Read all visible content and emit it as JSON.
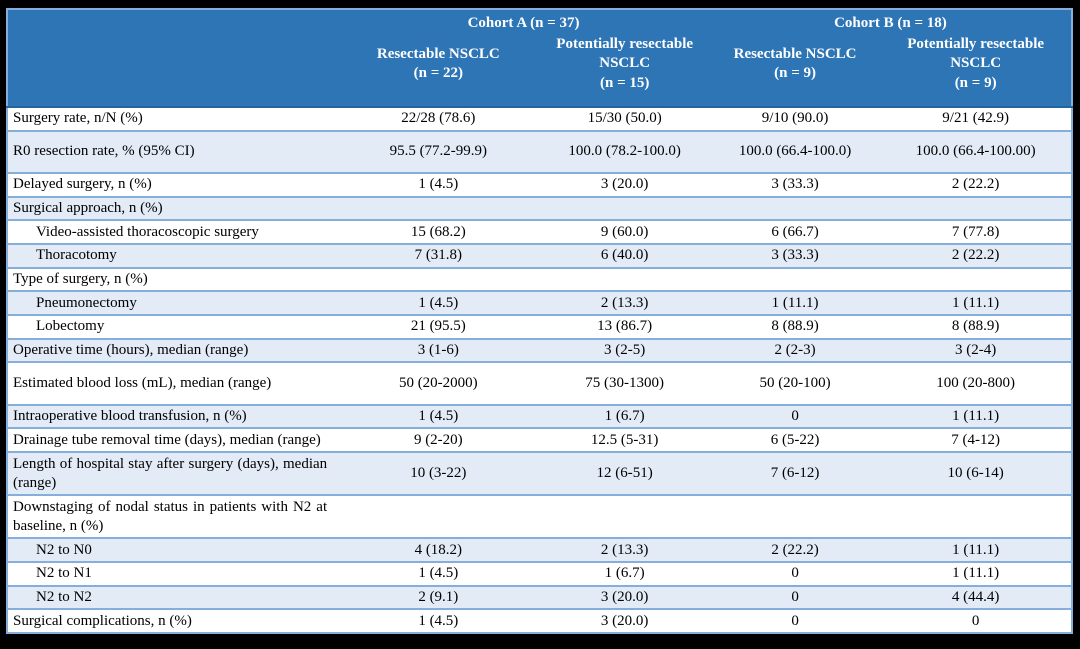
{
  "colors": {
    "header_bg": "#2E75B6",
    "header_text": "#FFFFFF",
    "row_alt_bg": "#E2EBF6",
    "row_bg": "#FFFFFF",
    "row_border": "#85AEDC",
    "header_divider": "#25649F",
    "frame": "#000000",
    "body_text": "#000000"
  },
  "table": {
    "cohorts": [
      {
        "label": "Cohort A (n = 37)"
      },
      {
        "label": "Cohort B (n = 18)"
      }
    ],
    "columns": [
      {
        "name": "Resectable NSCLC",
        "n": "(n = 22)"
      },
      {
        "name": "Potentially resectable NSCLC",
        "n": "(n = 15)"
      },
      {
        "name": "Resectable NSCLC",
        "n": "(n = 9)"
      },
      {
        "name": "Potentially resectable NSCLC",
        "n": "(n = 9)"
      }
    ],
    "rows": [
      {
        "label": "Surgery rate, n/N (%)",
        "indent": false,
        "values": [
          "22/28 (78.6)",
          "15/30 (50.0)",
          "9/10 (90.0)",
          "9/21 (42.9)"
        ]
      },
      {
        "label": "R0 resection rate, % (95% CI)",
        "indent": false,
        "values": [
          "95.5 (77.2-99.9)",
          "100.0 (78.2-100.0)",
          "100.0 (66.4-100.0)",
          "100.0 (66.4-100.00)"
        ]
      },
      {
        "label": "Delayed surgery, n (%)",
        "indent": false,
        "values": [
          "1 (4.5)",
          "3 (20.0)",
          "3 (33.3)",
          "2 (22.2)"
        ]
      },
      {
        "label": "Surgical approach, n (%)",
        "indent": false,
        "values": [
          "",
          "",
          "",
          ""
        ]
      },
      {
        "label": "Video-assisted thoracoscopic surgery",
        "indent": true,
        "values": [
          "15 (68.2)",
          "9 (60.0)",
          "6 (66.7)",
          "7 (77.8)"
        ]
      },
      {
        "label": "Thoracotomy",
        "indent": true,
        "values": [
          "7 (31.8)",
          "6 (40.0)",
          "3 (33.3)",
          "2 (22.2)"
        ]
      },
      {
        "label": "Type of surgery, n (%)",
        "indent": false,
        "values": [
          "",
          "",
          "",
          ""
        ]
      },
      {
        "label": "Pneumonectomy",
        "indent": true,
        "values": [
          "1 (4.5)",
          "2 (13.3)",
          "1 (11.1)",
          "1 (11.1)"
        ]
      },
      {
        "label": "Lobectomy",
        "indent": true,
        "values": [
          "21 (95.5)",
          "13 (86.7)",
          "8 (88.9)",
          "8 (88.9)"
        ]
      },
      {
        "label": "Operative time (hours), median (range)",
        "indent": false,
        "values": [
          "3 (1-6)",
          "3 (2-5)",
          "2 (2-3)",
          "3 (2-4)"
        ]
      },
      {
        "label": "Estimated blood loss (mL), median (range)",
        "indent": false,
        "values": [
          "50 (20-2000)",
          "75 (30-1300)",
          "50 (20-100)",
          "100 (20-800)"
        ]
      },
      {
        "label": "Intraoperative blood transfusion, n (%)",
        "indent": false,
        "values": [
          "1 (4.5)",
          "1 (6.7)",
          "0",
          "1 (11.1)"
        ]
      },
      {
        "label": "Drainage tube removal time (days), median (range)",
        "indent": false,
        "values": [
          "9 (2-20)",
          "12.5 (5-31)",
          "6 (5-22)",
          "7 (4-12)"
        ]
      },
      {
        "label": "Length of hospital stay after surgery (days), median (range)",
        "indent": false,
        "values": [
          "10 (3-22)",
          "12 (6-51)",
          "7 (6-12)",
          "10 (6-14)"
        ]
      },
      {
        "label": "Downstaging of nodal status in patients with N2 at baseline, n (%)",
        "indent": false,
        "values": [
          "",
          "",
          "",
          ""
        ]
      },
      {
        "label": "N2 to N0",
        "indent": true,
        "values": [
          "4 (18.2)",
          "2 (13.3)",
          "2 (22.2)",
          "1 (11.1)"
        ]
      },
      {
        "label": "N2 to N1",
        "indent": true,
        "values": [
          "1 (4.5)",
          "1 (6.7)",
          "0",
          "1 (11.1)"
        ]
      },
      {
        "label": "N2 to N2",
        "indent": true,
        "values": [
          "2 (9.1)",
          "3 (20.0)",
          "0",
          "4 (44.4)"
        ]
      },
      {
        "label": "Surgical complications, n (%)",
        "indent": false,
        "values": [
          "1 (4.5)",
          "3 (20.0)",
          "0",
          "0"
        ]
      }
    ]
  }
}
